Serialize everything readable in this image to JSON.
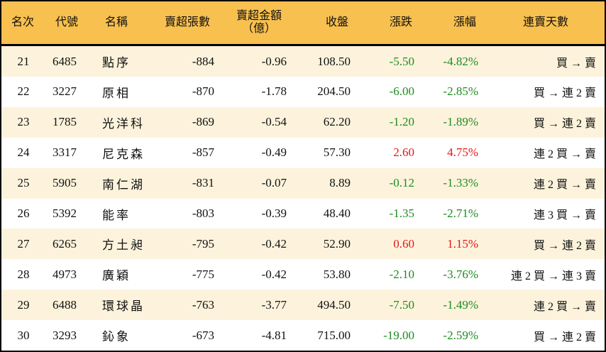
{
  "colors": {
    "header": "#F8C04F",
    "alt_row": "#FDF3DC",
    "down": "#1E8C1E",
    "up": "#E8141A"
  },
  "headers": {
    "rank": "名次",
    "code": "代號",
    "name": "名稱",
    "lots": "賣超張數",
    "amount_1": "賣超金額",
    "amount_2": "（億）",
    "close": "收盤",
    "change": "漲跌",
    "pct": "漲幅",
    "streak": "連賣天數"
  },
  "rows": [
    {
      "rank": "21",
      "code": "6485",
      "name": "點序",
      "lots": "-884",
      "amount": "-0.96",
      "close": "108.50",
      "change": "-5.50",
      "pct": "-4.82%",
      "dir": "down",
      "streak": "買 → 賣"
    },
    {
      "rank": "22",
      "code": "3227",
      "name": "原相",
      "lots": "-870",
      "amount": "-1.78",
      "close": "204.50",
      "change": "-6.00",
      "pct": "-2.85%",
      "dir": "down",
      "streak": "買 → 連 2 賣"
    },
    {
      "rank": "23",
      "code": "1785",
      "name": "光洋科",
      "lots": "-869",
      "amount": "-0.54",
      "close": "62.20",
      "change": "-1.20",
      "pct": "-1.89%",
      "dir": "down",
      "streak": "買 → 連 2 賣"
    },
    {
      "rank": "24",
      "code": "3317",
      "name": "尼克森",
      "lots": "-857",
      "amount": "-0.49",
      "close": "57.30",
      "change": "2.60",
      "pct": "4.75%",
      "dir": "up",
      "streak": "連 2 買 → 賣"
    },
    {
      "rank": "25",
      "code": "5905",
      "name": "南仁湖",
      "lots": "-831",
      "amount": "-0.07",
      "close": "8.89",
      "change": "-0.12",
      "pct": "-1.33%",
      "dir": "down",
      "streak": "連 2 買 → 賣"
    },
    {
      "rank": "26",
      "code": "5392",
      "name": "能率",
      "lots": "-803",
      "amount": "-0.39",
      "close": "48.40",
      "change": "-1.35",
      "pct": "-2.71%",
      "dir": "down",
      "streak": "連 3 買 → 賣"
    },
    {
      "rank": "27",
      "code": "6265",
      "name": "方土昶",
      "lots": "-795",
      "amount": "-0.42",
      "close": "52.90",
      "change": "0.60",
      "pct": "1.15%",
      "dir": "up",
      "streak": "買 → 連 2 賣"
    },
    {
      "rank": "28",
      "code": "4973",
      "name": "廣穎",
      "lots": "-775",
      "amount": "-0.42",
      "close": "53.80",
      "change": "-2.10",
      "pct": "-3.76%",
      "dir": "down",
      "streak": "連 2 買 → 連 3 賣"
    },
    {
      "rank": "29",
      "code": "6488",
      "name": "環球晶",
      "lots": "-763",
      "amount": "-3.77",
      "close": "494.50",
      "change": "-7.50",
      "pct": "-1.49%",
      "dir": "down",
      "streak": "連 2 買 → 賣"
    },
    {
      "rank": "30",
      "code": "3293",
      "name": "鈊象",
      "lots": "-673",
      "amount": "-4.81",
      "close": "715.00",
      "change": "-19.00",
      "pct": "-2.59%",
      "dir": "down",
      "streak": "買 → 連 2 賣"
    }
  ]
}
